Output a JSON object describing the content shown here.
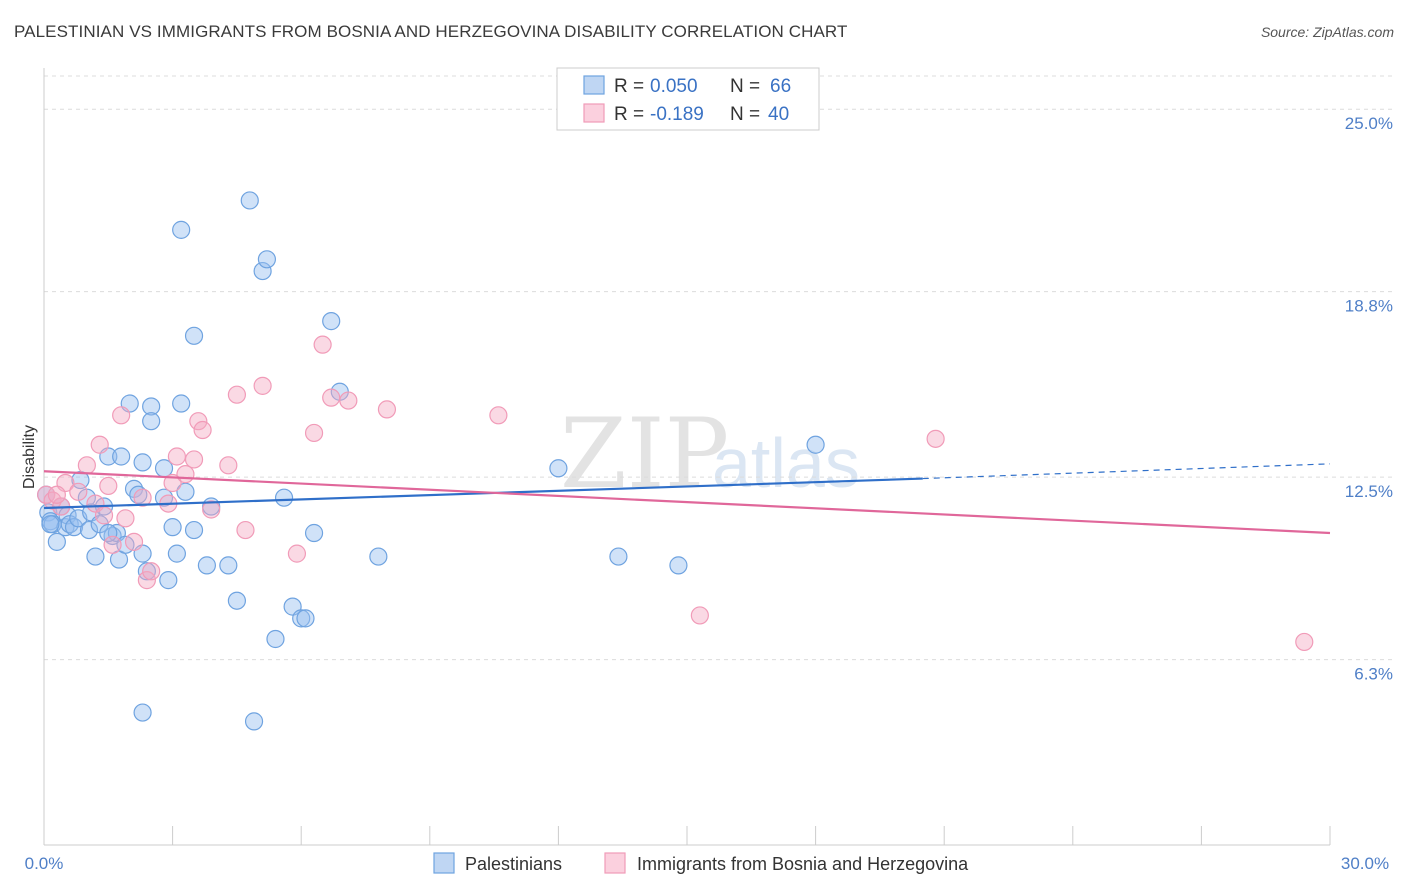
{
  "title": "PALESTINIAN VS IMMIGRANTS FROM BOSNIA AND HERZEGOVINA DISABILITY CORRELATION CHART",
  "source": "Source: ZipAtlas.com",
  "watermark": {
    "zip": "ZIP",
    "atlas": "atlas"
  },
  "legend": {
    "rows": [
      {
        "r_label": "R =",
        "r_value": "0.050",
        "n_label": "N =",
        "n_value": "66"
      },
      {
        "r_label": "R =",
        "r_value": "-0.189",
        "n_label": "N =",
        "n_value": "40"
      }
    ]
  },
  "bottom_legend": [
    "Palestinians",
    "Immigrants from Bosnia and Herzegovina"
  ],
  "chart_data": {
    "type": "scatter",
    "title": "PALESTINIAN VS IMMIGRANTS FROM BOSNIA AND HERZEGOVINA DISABILITY CORRELATION CHART",
    "xlabel": "",
    "ylabel": "Disability",
    "xlim": [
      0,
      30
    ],
    "ylim": [
      0,
      26.4
    ],
    "x_tick_labels": [
      "0.0%",
      "30.0%"
    ],
    "y_tick_labels": [
      "25.0%",
      "18.8%",
      "12.5%",
      "6.3%"
    ],
    "y_ticks": [
      25.0,
      18.8,
      12.5,
      6.3
    ],
    "grid": true,
    "colors": {
      "blue": "#6fa3e0",
      "blue_line": "#2f6fc9",
      "pink": "#f19bb8",
      "pink_line": "#e0679a"
    },
    "series": [
      {
        "name": "Palestinians",
        "color": "#6fa3e0",
        "trend": {
          "x0": 0,
          "y0": 11.45,
          "x1": 20.5,
          "y1": 12.45,
          "dash_to_x": 30,
          "dash_to_y": 12.95
        },
        "points": [
          [
            0.05,
            11.9
          ],
          [
            0.1,
            11.3
          ],
          [
            0.15,
            11.0
          ],
          [
            0.2,
            10.9
          ],
          [
            0.3,
            10.3
          ],
          [
            0.4,
            11.5
          ],
          [
            0.5,
            10.8
          ],
          [
            0.55,
            11.2
          ],
          [
            0.6,
            10.9
          ],
          [
            0.7,
            10.8
          ],
          [
            0.8,
            11.1
          ],
          [
            0.85,
            12.4
          ],
          [
            1.0,
            11.8
          ],
          [
            1.05,
            10.7
          ],
          [
            1.1,
            11.3
          ],
          [
            1.2,
            9.8
          ],
          [
            1.3,
            10.9
          ],
          [
            1.4,
            11.5
          ],
          [
            1.5,
            13.2
          ],
          [
            1.6,
            10.5
          ],
          [
            1.7,
            10.6
          ],
          [
            1.75,
            9.7
          ],
          [
            1.8,
            13.2
          ],
          [
            1.9,
            10.2
          ],
          [
            2.0,
            15.0
          ],
          [
            2.1,
            12.1
          ],
          [
            2.2,
            11.9
          ],
          [
            2.3,
            9.9
          ],
          [
            2.3,
            13.0
          ],
          [
            2.4,
            9.3
          ],
          [
            2.5,
            14.9
          ],
          [
            2.5,
            14.4
          ],
          [
            2.8,
            12.8
          ],
          [
            2.8,
            11.8
          ],
          [
            2.9,
            9.0
          ],
          [
            3.0,
            10.8
          ],
          [
            3.1,
            9.9
          ],
          [
            3.2,
            20.9
          ],
          [
            3.2,
            15.0
          ],
          [
            3.3,
            12.0
          ],
          [
            3.5,
            10.7
          ],
          [
            3.5,
            17.3
          ],
          [
            3.8,
            9.5
          ],
          [
            3.9,
            11.5
          ],
          [
            4.3,
            9.5
          ],
          [
            4.5,
            8.3
          ],
          [
            4.8,
            21.9
          ],
          [
            5.1,
            19.5
          ],
          [
            5.2,
            19.9
          ],
          [
            5.4,
            7.0
          ],
          [
            5.6,
            11.8
          ],
          [
            5.8,
            8.1
          ],
          [
            6.0,
            7.7
          ],
          [
            6.1,
            7.7
          ],
          [
            6.3,
            10.6
          ],
          [
            6.7,
            17.8
          ],
          [
            6.9,
            15.4
          ],
          [
            7.8,
            9.8
          ],
          [
            12.0,
            12.8
          ],
          [
            13.4,
            9.8
          ],
          [
            14.8,
            9.5
          ],
          [
            18.0,
            13.6
          ],
          [
            2.3,
            4.5
          ],
          [
            4.9,
            4.2
          ],
          [
            0.15,
            10.9
          ],
          [
            1.5,
            10.6
          ]
        ]
      },
      {
        "name": "Immigrants from Bosnia and Herzegovina",
        "color": "#f19bb8",
        "trend": {
          "x0": 0,
          "y0": 12.7,
          "x1": 30,
          "y1": 10.6
        },
        "points": [
          [
            0.05,
            11.9
          ],
          [
            0.2,
            11.7
          ],
          [
            0.4,
            11.5
          ],
          [
            0.5,
            12.3
          ],
          [
            0.8,
            12.0
          ],
          [
            1.0,
            12.9
          ],
          [
            1.2,
            11.6
          ],
          [
            1.3,
            13.6
          ],
          [
            1.4,
            11.2
          ],
          [
            1.5,
            12.2
          ],
          [
            1.6,
            10.2
          ],
          [
            1.8,
            14.6
          ],
          [
            1.9,
            11.1
          ],
          [
            2.1,
            10.3
          ],
          [
            2.3,
            11.8
          ],
          [
            2.4,
            9.0
          ],
          [
            2.5,
            9.3
          ],
          [
            2.9,
            11.6
          ],
          [
            3.0,
            12.3
          ],
          [
            3.1,
            13.2
          ],
          [
            3.3,
            12.6
          ],
          [
            3.5,
            13.1
          ],
          [
            3.6,
            14.4
          ],
          [
            3.7,
            14.1
          ],
          [
            3.9,
            11.4
          ],
          [
            4.3,
            12.9
          ],
          [
            4.5,
            15.3
          ],
          [
            4.7,
            10.7
          ],
          [
            5.1,
            15.6
          ],
          [
            5.9,
            9.9
          ],
          [
            6.3,
            14.0
          ],
          [
            6.5,
            17.0
          ],
          [
            6.7,
            15.2
          ],
          [
            7.1,
            15.1
          ],
          [
            8.0,
            14.8
          ],
          [
            10.6,
            14.6
          ],
          [
            15.3,
            7.8
          ],
          [
            20.8,
            13.8
          ],
          [
            29.4,
            6.9
          ],
          [
            0.3,
            11.9
          ]
        ]
      }
    ]
  }
}
